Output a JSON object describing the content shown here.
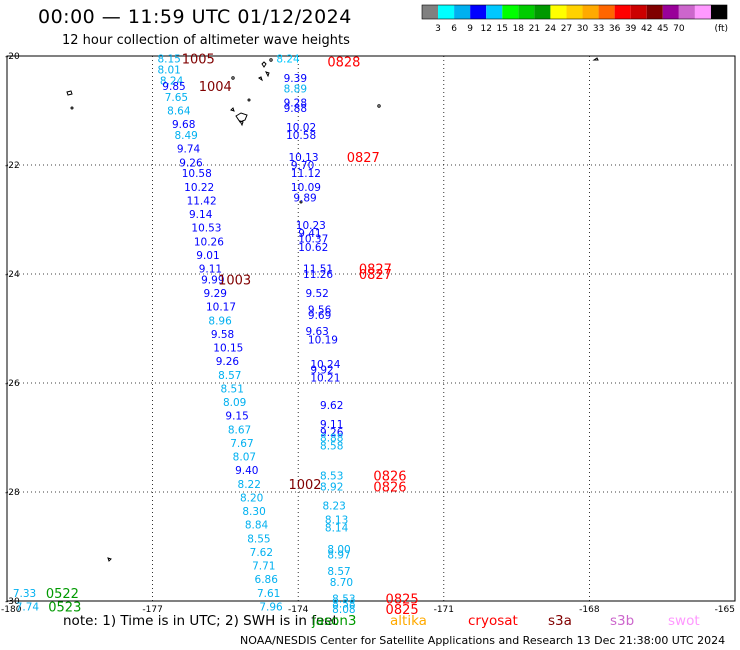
{
  "title": "00:00 — 11:59 UTC 01/12/2024",
  "subtitle": "12 hour collection of altimeter wave heights",
  "footer": "NOAA/NESDIS Center for Satellite Applications and Research   13 Dec 21:38:00 UTC 2024",
  "colors": {
    "c1": "#808080",
    "c2": "#00ffff",
    "c3": "#00b0f0",
    "c4": "#0000ff",
    "c5": "#00c8ff",
    "c6": "#00ff00",
    "c7": "#00cc00",
    "c8": "#009900",
    "c9": "#ffff00",
    "c10": "#ffd200",
    "c11": "#ffaa00",
    "c12": "#ff6600",
    "c13": "#ff0000",
    "c14": "#cc0000",
    "c15": "#800000",
    "c16": "#990099",
    "c17": "#cc66cc",
    "c18": "#ff99ff",
    "c19": "#000000"
  },
  "chart_data": {
    "type": "scatter",
    "title": "00:00 — 11:59 UTC 01/12/2024",
    "subtitle": "12 hour collection of altimeter wave heights",
    "xlim": [
      -180,
      -165
    ],
    "ylim": [
      -30,
      -20
    ],
    "xticks": [
      "-180",
      "-177",
      "-174",
      "-171",
      "-168",
      "-165"
    ],
    "yticks": [
      "-20",
      "-22",
      "-24",
      "-26",
      "-28",
      "-30"
    ],
    "grid": true,
    "colorbar": {
      "labels": [
        "3",
        "6",
        "9",
        "12",
        "15",
        "18",
        "21",
        "24",
        "27",
        "30",
        "33",
        "36",
        "39",
        "42",
        "45",
        "70"
      ],
      "unit": "(ft)",
      "colors": [
        "#808080",
        "#00ffff",
        "#00b0f0",
        "#0000ff",
        "#00c8ff",
        "#00ff00",
        "#00cc00",
        "#009900",
        "#ffff00",
        "#ffd200",
        "#ffaa00",
        "#ff6600",
        "#ff0000",
        "#cc0000",
        "#800000",
        "#990099",
        "#cc66cc",
        "#ff99ff",
        "#000000"
      ]
    },
    "note": "note: 1) Time is in UTC; 2) SWH is in feet",
    "legend": [
      {
        "name": "jason3",
        "color": "#009900"
      },
      {
        "name": "altika",
        "color": "#ffaa00"
      },
      {
        "name": "cryosat",
        "color": "#ff0000"
      },
      {
        "name": "s3a",
        "color": "#800000"
      },
      {
        "name": "s3b",
        "color": "#cc66cc"
      },
      {
        "name": "swot",
        "color": "#ff99ff"
      }
    ],
    "points": [
      {
        "lon": -176.9,
        "lat": -20.05,
        "t": "8.15",
        "c": "#00b0f0"
      },
      {
        "lon": -176.9,
        "lat": -20.25,
        "t": "8.01",
        "c": "#00b0f0"
      },
      {
        "lon": -176.85,
        "lat": -20.45,
        "t": "8.24",
        "c": "#00b0f0"
      },
      {
        "lon": -176.8,
        "lat": -20.55,
        "t": "9.85",
        "c": "#0000ff"
      },
      {
        "lon": -176.75,
        "lat": -20.75,
        "t": "7.65",
        "c": "#00b0f0"
      },
      {
        "lon": -176.7,
        "lat": -21.0,
        "t": "8.64",
        "c": "#00b0f0"
      },
      {
        "lon": -176.6,
        "lat": -21.25,
        "t": "9.68",
        "c": "#0000ff"
      },
      {
        "lon": -176.55,
        "lat": -21.45,
        "t": "8.49",
        "c": "#00b0f0"
      },
      {
        "lon": -176.5,
        "lat": -21.7,
        "t": "9.74",
        "c": "#0000ff"
      },
      {
        "lon": -176.45,
        "lat": -21.95,
        "t": "9.26",
        "c": "#0000ff"
      },
      {
        "lon": -176.4,
        "lat": -22.15,
        "t": "10.58",
        "c": "#0000ff"
      },
      {
        "lon": -176.35,
        "lat": -22.4,
        "t": "10.22",
        "c": "#0000ff"
      },
      {
        "lon": -176.3,
        "lat": -22.65,
        "t": "11.42",
        "c": "#0000ff"
      },
      {
        "lon": -176.25,
        "lat": -22.9,
        "t": "9.14",
        "c": "#0000ff"
      },
      {
        "lon": -176.2,
        "lat": -23.15,
        "t": "10.53",
        "c": "#0000ff"
      },
      {
        "lon": -176.15,
        "lat": -23.4,
        "t": "10.26",
        "c": "#0000ff"
      },
      {
        "lon": -176.1,
        "lat": -23.65,
        "t": "9.01",
        "c": "#0000ff"
      },
      {
        "lon": -176.05,
        "lat": -23.9,
        "t": "9.11",
        "c": "#0000ff"
      },
      {
        "lon": -176.0,
        "lat": -24.1,
        "t": "9.99",
        "c": "#0000ff"
      },
      {
        "lon": -175.95,
        "lat": -24.35,
        "t": "9.29",
        "c": "#0000ff"
      },
      {
        "lon": -175.9,
        "lat": -24.6,
        "t": "10.17",
        "c": "#0000ff"
      },
      {
        "lon": -175.85,
        "lat": -24.85,
        "t": "8.96",
        "c": "#00b0f0"
      },
      {
        "lon": -175.8,
        "lat": -25.1,
        "t": "9.58",
        "c": "#0000ff"
      },
      {
        "lon": -175.75,
        "lat": -25.35,
        "t": "10.15",
        "c": "#0000ff"
      },
      {
        "lon": -175.7,
        "lat": -25.6,
        "t": "9.26",
        "c": "#0000ff"
      },
      {
        "lon": -175.65,
        "lat": -25.85,
        "t": "8.57",
        "c": "#00b0f0"
      },
      {
        "lon": -175.6,
        "lat": -26.1,
        "t": "8.51",
        "c": "#00b0f0"
      },
      {
        "lon": -175.55,
        "lat": -26.35,
        "t": "8.09",
        "c": "#00b0f0"
      },
      {
        "lon": -175.5,
        "lat": -26.6,
        "t": "9.15",
        "c": "#0000ff"
      },
      {
        "lon": -175.45,
        "lat": -26.85,
        "t": "8.67",
        "c": "#00b0f0"
      },
      {
        "lon": -175.4,
        "lat": -27.1,
        "t": "7.67",
        "c": "#00b0f0"
      },
      {
        "lon": -175.35,
        "lat": -27.35,
        "t": "8.07",
        "c": "#00b0f0"
      },
      {
        "lon": -175.3,
        "lat": -27.6,
        "t": "9.40",
        "c": "#0000ff"
      },
      {
        "lon": -175.25,
        "lat": -27.85,
        "t": "8.22",
        "c": "#00b0f0"
      },
      {
        "lon": -175.2,
        "lat": -28.1,
        "t": "8.20",
        "c": "#00b0f0"
      },
      {
        "lon": -175.15,
        "lat": -28.35,
        "t": "8.30",
        "c": "#00b0f0"
      },
      {
        "lon": -175.1,
        "lat": -28.6,
        "t": "8.84",
        "c": "#00b0f0"
      },
      {
        "lon": -175.05,
        "lat": -28.85,
        "t": "8.55",
        "c": "#00b0f0"
      },
      {
        "lon": -175.0,
        "lat": -29.1,
        "t": "7.62",
        "c": "#00b0f0"
      },
      {
        "lon": -174.95,
        "lat": -29.35,
        "t": "7.71",
        "c": "#00b0f0"
      },
      {
        "lon": -174.9,
        "lat": -29.6,
        "t": "6.86",
        "c": "#00b0f0"
      },
      {
        "lon": -174.85,
        "lat": -29.85,
        "t": "7.61",
        "c": "#00b0f0"
      },
      {
        "lon": -174.8,
        "lat": -30.1,
        "t": "7.96",
        "c": "#00b0f0"
      },
      {
        "lon": -174.45,
        "lat": -20.05,
        "t": "8.24",
        "c": "#00c8ff"
      },
      {
        "lon": -174.3,
        "lat": -20.4,
        "t": "9.39",
        "c": "#0000ff"
      },
      {
        "lon": -174.3,
        "lat": -20.6,
        "t": "8.89",
        "c": "#00b0f0"
      },
      {
        "lon": -174.3,
        "lat": -20.85,
        "t": "9.28",
        "c": "#0000ff"
      },
      {
        "lon": -174.3,
        "lat": -20.95,
        "t": "9.88",
        "c": "#0000ff"
      },
      {
        "lon": -174.25,
        "lat": -21.3,
        "t": "10.02",
        "c": "#0000ff"
      },
      {
        "lon": -174.25,
        "lat": -21.45,
        "t": "10.58",
        "c": "#0000ff"
      },
      {
        "lon": -174.2,
        "lat": -21.85,
        "t": "10.13",
        "c": "#0000ff"
      },
      {
        "lon": -174.15,
        "lat": -22.0,
        "t": "9.70",
        "c": "#0000ff"
      },
      {
        "lon": -174.15,
        "lat": -22.15,
        "t": "11.12",
        "c": "#0000ff"
      },
      {
        "lon": -174.15,
        "lat": -22.4,
        "t": "10.09",
        "c": "#0000ff"
      },
      {
        "lon": -174.1,
        "lat": -22.6,
        "t": "9.89",
        "c": "#0000ff"
      },
      {
        "lon": -174.05,
        "lat": -23.1,
        "t": "10.23",
        "c": "#0000ff"
      },
      {
        "lon": -174.0,
        "lat": -23.25,
        "t": "9.41",
        "c": "#0000ff"
      },
      {
        "lon": -174.0,
        "lat": -23.35,
        "t": "10.37",
        "c": "#0000ff"
      },
      {
        "lon": -174.0,
        "lat": -23.5,
        "t": "10.62",
        "c": "#0000ff"
      },
      {
        "lon": -173.9,
        "lat": -23.9,
        "t": "11.51",
        "c": "#0000ff"
      },
      {
        "lon": -173.9,
        "lat": -24.0,
        "t": "11.26",
        "c": "#0000ff"
      },
      {
        "lon": -173.85,
        "lat": -24.35,
        "t": "9.52",
        "c": "#0000ff"
      },
      {
        "lon": -173.8,
        "lat": -24.65,
        "t": "9.56",
        "c": "#0000ff"
      },
      {
        "lon": -173.8,
        "lat": -24.75,
        "t": "9.69",
        "c": "#0000ff"
      },
      {
        "lon": -173.85,
        "lat": -25.05,
        "t": "9.63",
        "c": "#0000ff"
      },
      {
        "lon": -173.8,
        "lat": -25.2,
        "t": "10.19",
        "c": "#0000ff"
      },
      {
        "lon": -173.75,
        "lat": -25.65,
        "t": "10.24",
        "c": "#0000ff"
      },
      {
        "lon": -173.75,
        "lat": -25.75,
        "t": "9.92",
        "c": "#0000ff"
      },
      {
        "lon": -173.75,
        "lat": -25.9,
        "t": "10.21",
        "c": "#0000ff"
      },
      {
        "lon": -173.55,
        "lat": -26.4,
        "t": "9.62",
        "c": "#0000ff"
      },
      {
        "lon": -173.55,
        "lat": -26.75,
        "t": "9.11",
        "c": "#0000ff"
      },
      {
        "lon": -173.55,
        "lat": -26.9,
        "t": "9.26",
        "c": "#0000ff"
      },
      {
        "lon": -173.55,
        "lat": -27.0,
        "t": "8.88",
        "c": "#00b0f0"
      },
      {
        "lon": -173.55,
        "lat": -27.15,
        "t": "8.58",
        "c": "#00b0f0"
      },
      {
        "lon": -173.55,
        "lat": -27.7,
        "t": "8.53",
        "c": "#00b0f0"
      },
      {
        "lon": -173.55,
        "lat": -27.9,
        "t": "8.92",
        "c": "#00b0f0"
      },
      {
        "lon": -173.5,
        "lat": -28.25,
        "t": "8.23",
        "c": "#00b0f0"
      },
      {
        "lon": -173.45,
        "lat": -28.5,
        "t": "8.13",
        "c": "#00b0f0"
      },
      {
        "lon": -173.45,
        "lat": -28.65,
        "t": "8.14",
        "c": "#00b0f0"
      },
      {
        "lon": -173.4,
        "lat": -29.05,
        "t": "8.00",
        "c": "#00b0f0"
      },
      {
        "lon": -173.4,
        "lat": -29.15,
        "t": "8.97",
        "c": "#00b0f0"
      },
      {
        "lon": -173.4,
        "lat": -29.45,
        "t": "8.57",
        "c": "#00b0f0"
      },
      {
        "lon": -173.35,
        "lat": -29.65,
        "t": "8.70",
        "c": "#00b0f0"
      },
      {
        "lon": -173.3,
        "lat": -29.95,
        "t": "8.53",
        "c": "#00b0f0"
      },
      {
        "lon": -173.3,
        "lat": -30.05,
        "t": "8.58",
        "c": "#00b0f0"
      },
      {
        "lon": -173.3,
        "lat": -30.15,
        "t": "8.08",
        "c": "#00b0f0"
      },
      {
        "lon": -179.88,
        "lat": -29.85,
        "t": "7.33",
        "c": "#00b0f0"
      },
      {
        "lon": -179.82,
        "lat": -30.1,
        "t": "7.74",
        "c": "#00b0f0"
      }
    ],
    "passes": [
      {
        "lon": -176.4,
        "lat": -20.05,
        "t": "1005",
        "c": "#800000"
      },
      {
        "lon": -176.05,
        "lat": -20.55,
        "t": "1004",
        "c": "#800000"
      },
      {
        "lon": -175.65,
        "lat": -24.1,
        "t": "1003",
        "c": "#800000"
      },
      {
        "lon": -174.2,
        "lat": -27.85,
        "t": "1002",
        "c": "#800000"
      },
      {
        "lon": -173.4,
        "lat": -20.1,
        "t": "0828",
        "c": "#ff0000"
      },
      {
        "lon": -173.0,
        "lat": -21.85,
        "t": "0827",
        "c": "#ff0000"
      },
      {
        "lon": -172.75,
        "lat": -23.9,
        "t": "0827",
        "c": "#ff0000"
      },
      {
        "lon": -172.75,
        "lat": -24.0,
        "t": "0827",
        "c": "#ff0000"
      },
      {
        "lon": -172.45,
        "lat": -27.7,
        "t": "0826",
        "c": "#ff0000"
      },
      {
        "lon": -172.45,
        "lat": -27.9,
        "t": "0826",
        "c": "#ff0000"
      },
      {
        "lon": -172.2,
        "lat": -29.95,
        "t": "0825",
        "c": "#ff0000"
      },
      {
        "lon": -172.2,
        "lat": -30.15,
        "t": "0825",
        "c": "#ff0000"
      },
      {
        "lon": -179.2,
        "lat": -29.85,
        "t": "0522",
        "c": "#009900"
      },
      {
        "lon": -179.15,
        "lat": -30.1,
        "t": "0523",
        "c": "#009900"
      }
    ]
  }
}
